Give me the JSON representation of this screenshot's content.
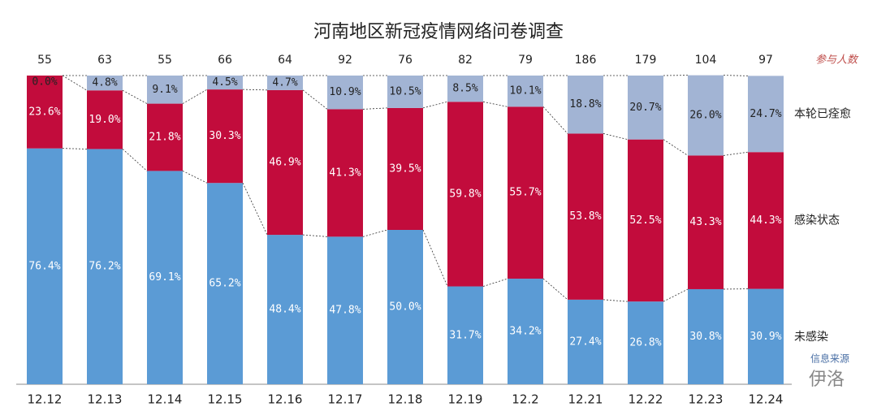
{
  "chart_data": {
    "type": "stacked_bar",
    "title": "河南地区新冠疫情网络问卷调查",
    "categories": [
      "12.12",
      "12.13",
      "12.14",
      "12.15",
      "12.16",
      "12.17",
      "12.18",
      "12.19",
      "12.2",
      "12.21",
      "12.22",
      "12.23",
      "12.24"
    ],
    "participants_label": "参与人数",
    "participants": [
      55,
      63,
      55,
      66,
      64,
      92,
      76,
      82,
      79,
      186,
      179,
      104,
      97
    ],
    "ylim": [
      0,
      100
    ],
    "series": [
      {
        "name": "未感染",
        "color": "#5b9bd5",
        "values": [
          76.4,
          76.2,
          69.1,
          65.2,
          48.4,
          47.8,
          50.0,
          31.7,
          34.2,
          27.4,
          26.8,
          30.8,
          30.9
        ],
        "value_labels": [
          "76.4%",
          "76.2%",
          "69.1%",
          "65.2%",
          "48.4%",
          "47.8%",
          "50.0%",
          "31.7%",
          "34.2%",
          "27.4%",
          "26.8%",
          "30.8%",
          "30.9%"
        ]
      },
      {
        "name": "感染状态",
        "color": "#c20c3c",
        "values": [
          23.6,
          19.0,
          21.8,
          30.3,
          46.9,
          41.3,
          39.5,
          59.8,
          55.7,
          53.8,
          52.5,
          43.3,
          44.3
        ],
        "value_labels": [
          "23.6%",
          "19.0%",
          "21.8%",
          "30.3%",
          "46.9%",
          "41.3%",
          "39.5%",
          "59.8%",
          "55.7%",
          "53.8%",
          "52.5%",
          "43.3%",
          "44.3%"
        ]
      },
      {
        "name": "本轮已痊愈",
        "color": "#a2b4d4",
        "values": [
          0.0,
          4.8,
          9.1,
          4.5,
          4.7,
          10.9,
          10.5,
          8.5,
          10.1,
          18.8,
          20.7,
          26.0,
          24.7
        ],
        "value_labels": [
          "0.0%",
          "4.8%",
          "9.1%",
          "4.5%",
          "4.7%",
          "10.9%",
          "10.5%",
          "8.5%",
          "10.1%",
          "18.8%",
          "20.7%",
          "26.0%",
          "24.7%"
        ]
      }
    ],
    "watermark": [
      "信息来源",
      "伊洛"
    ]
  }
}
